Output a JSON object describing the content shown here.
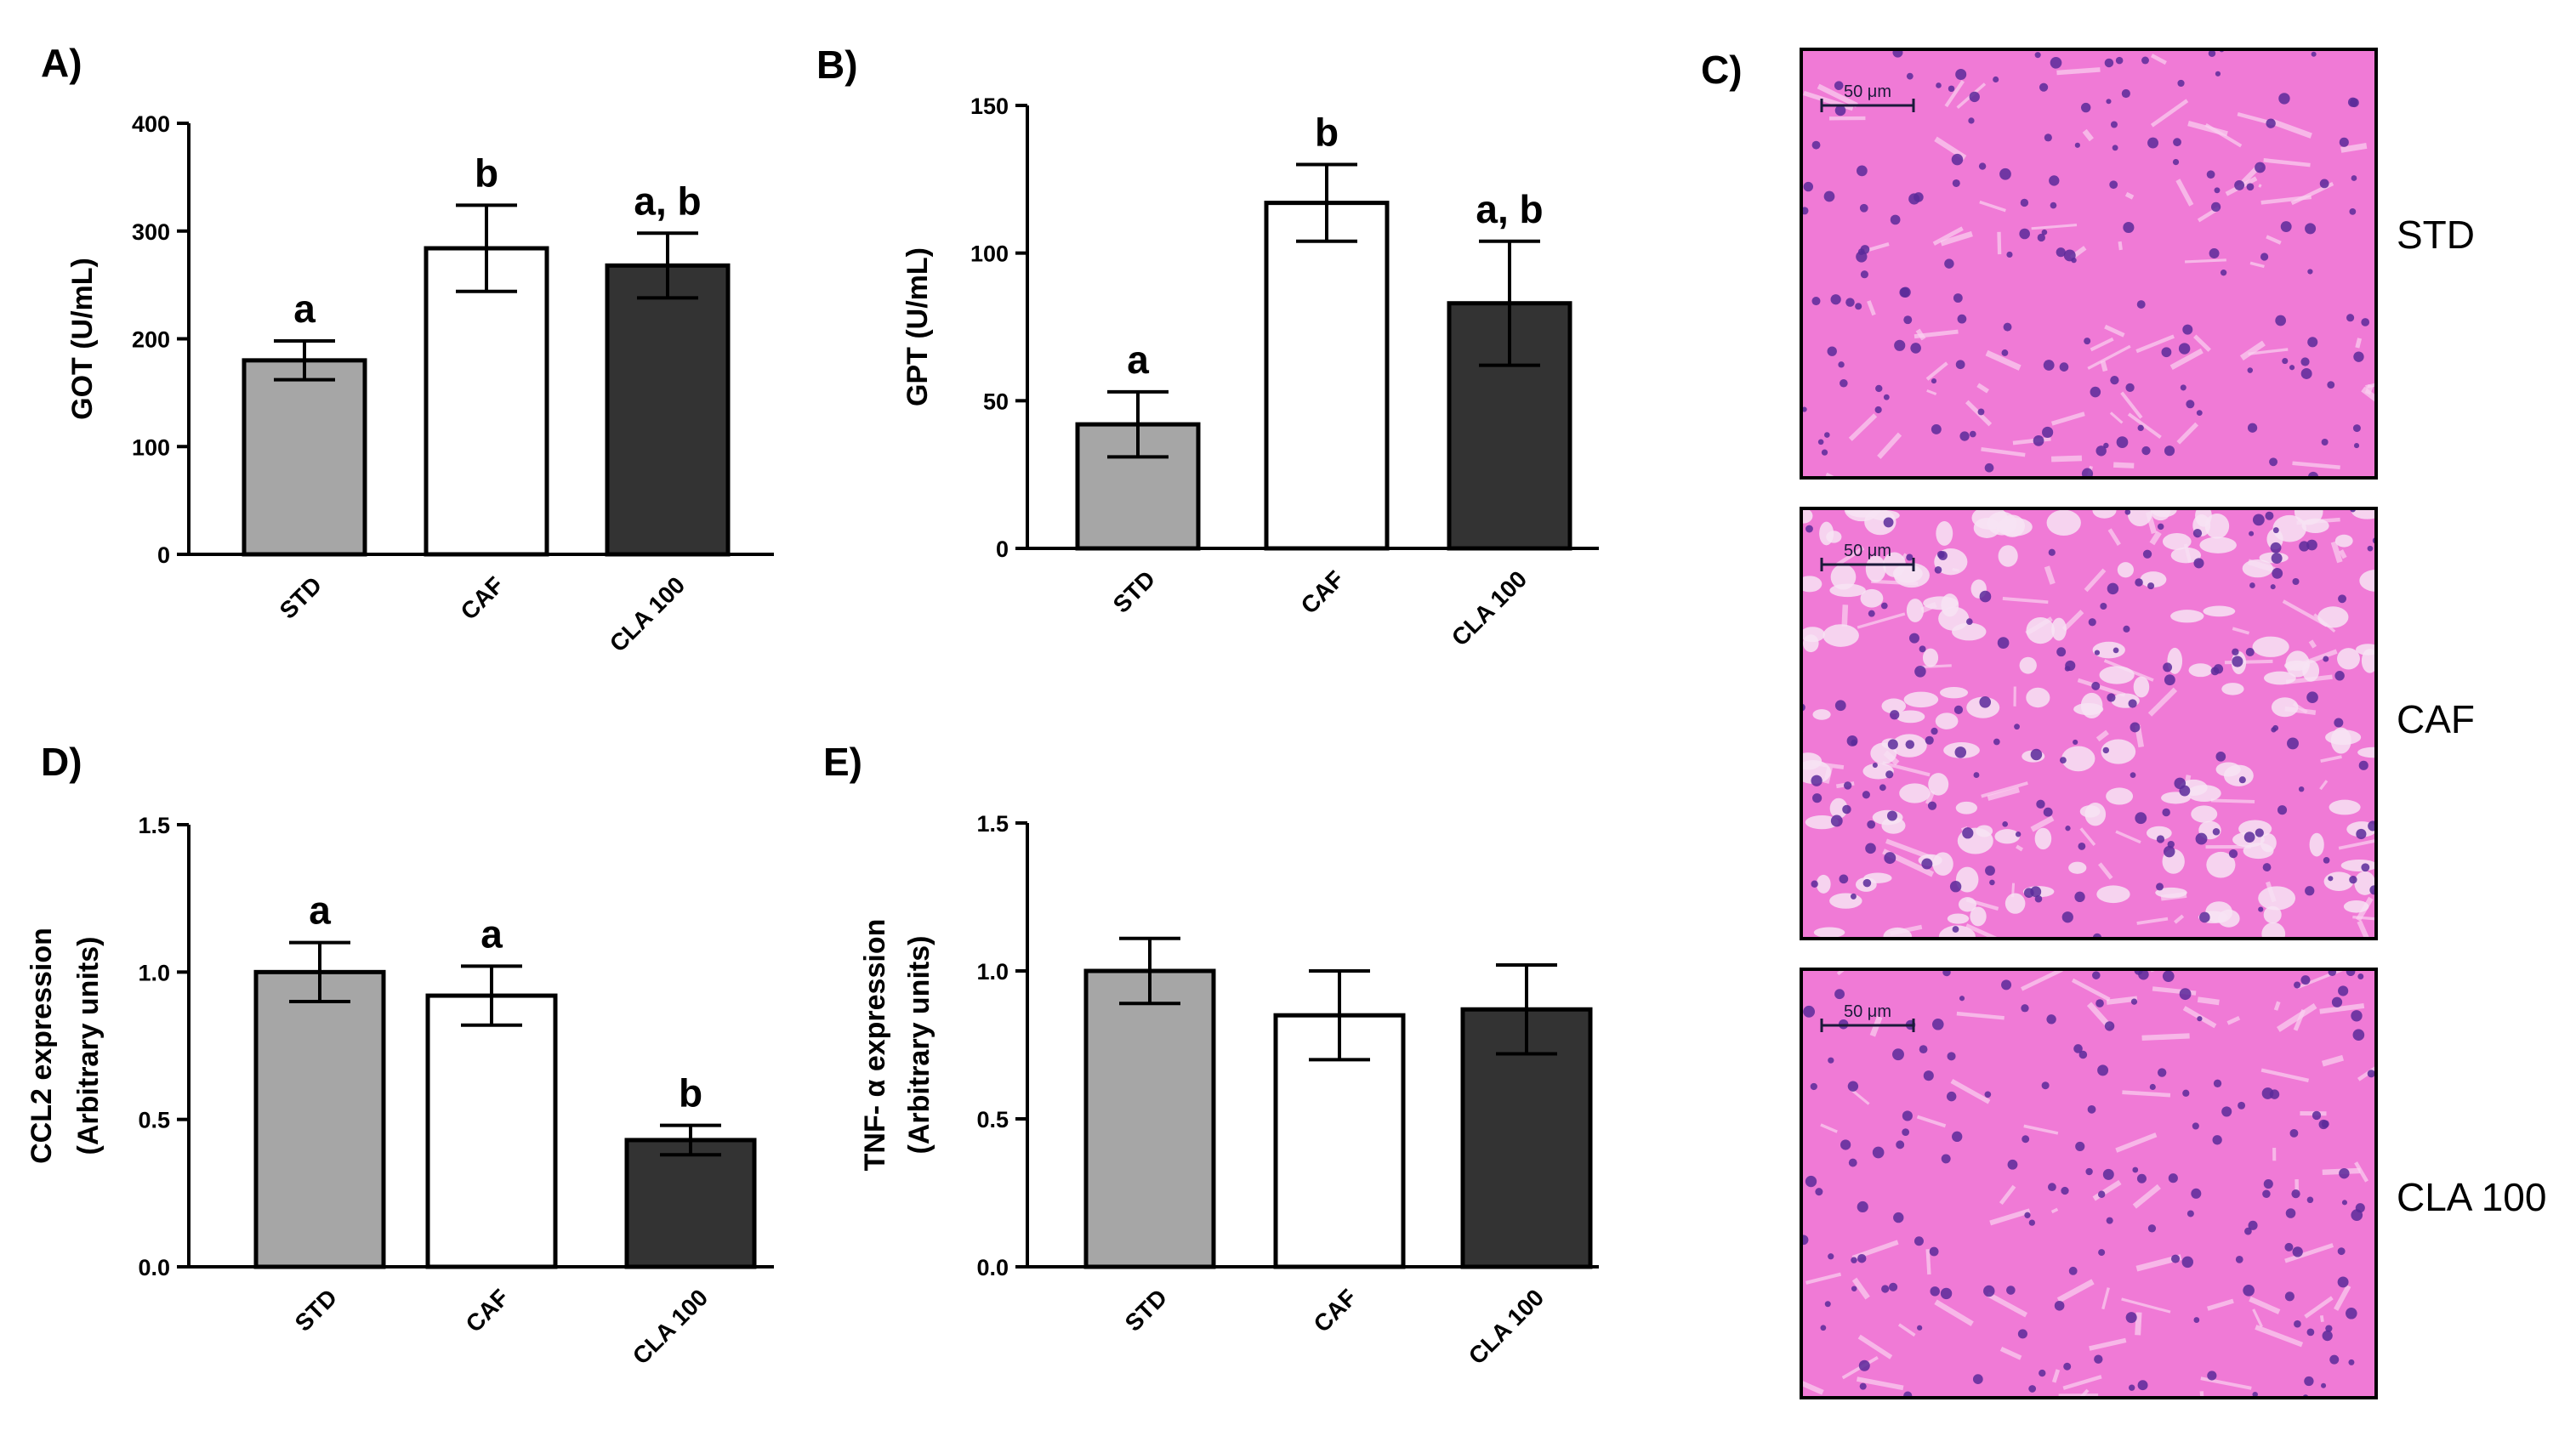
{
  "panels": {
    "A": "A)",
    "B": "B)",
    "C": "C)",
    "D": "D)",
    "E": "E)"
  },
  "colors": {
    "STD": "#a6a6a6",
    "CAF": "#ffffff",
    "CLA 100": "#333333",
    "tissue_bg": "#f07ad6",
    "tissue_nuclei": "#5a2a9a"
  },
  "chart_data": [
    {
      "panel": "A",
      "type": "bar",
      "categories": [
        "STD",
        "CAF",
        "CLA 100"
      ],
      "values": [
        180,
        284,
        268
      ],
      "errors": [
        18,
        40,
        30
      ],
      "significance": [
        "a",
        "b",
        "a, b"
      ],
      "ylabel": "GOT (U/mL)",
      "ylim": [
        0,
        400
      ],
      "yticks": [
        0,
        100,
        200,
        300,
        400
      ],
      "ytick_labels": [
        "0",
        "100",
        "200",
        "300",
        "400"
      ]
    },
    {
      "panel": "B",
      "type": "bar",
      "categories": [
        "STD",
        "CAF",
        "CLA 100"
      ],
      "values": [
        42,
        117,
        83
      ],
      "errors": [
        11,
        13,
        21
      ],
      "significance": [
        "a",
        "b",
        "a, b"
      ],
      "ylabel": "GPT (U/mL)",
      "ylim": [
        0,
        150
      ],
      "yticks": [
        0,
        50,
        100,
        150
      ],
      "ytick_labels": [
        "0",
        "50",
        "100",
        "150"
      ]
    },
    {
      "panel": "D",
      "type": "bar",
      "categories": [
        "STD",
        "CAF",
        "CLA 100"
      ],
      "values": [
        1.0,
        0.92,
        0.43
      ],
      "errors": [
        0.1,
        0.1,
        0.05
      ],
      "significance": [
        "a",
        "a",
        "b"
      ],
      "ylabel": [
        "CCL2 expression",
        "(Arbitrary units)"
      ],
      "ylim": [
        0,
        1.5
      ],
      "yticks": [
        0,
        0.5,
        1.0,
        1.5
      ],
      "ytick_labels": [
        "0.0",
        "0.5",
        "1.0",
        "1.5"
      ]
    },
    {
      "panel": "E",
      "type": "bar",
      "categories": [
        "STD",
        "CAF",
        "CLA 100"
      ],
      "values": [
        1.0,
        0.85,
        0.87
      ],
      "errors": [
        0.11,
        0.15,
        0.15
      ],
      "significance": [
        "",
        "",
        ""
      ],
      "ylabel": [
        "TNF- α expression",
        "(Arbitrary units)"
      ],
      "ylim": [
        0,
        1.5
      ],
      "yticks": [
        0,
        0.5,
        1.0,
        1.5
      ],
      "ytick_labels": [
        "0.0",
        "0.5",
        "1.0",
        "1.5"
      ]
    }
  ],
  "histology": [
    {
      "label": "STD",
      "scale_bar": "50 μm",
      "tissue": "normal"
    },
    {
      "label": "CAF",
      "scale_bar": "50 μm",
      "tissue": "steatotic"
    },
    {
      "label": "CLA 100",
      "scale_bar": "50 μm",
      "tissue": "normal"
    }
  ]
}
